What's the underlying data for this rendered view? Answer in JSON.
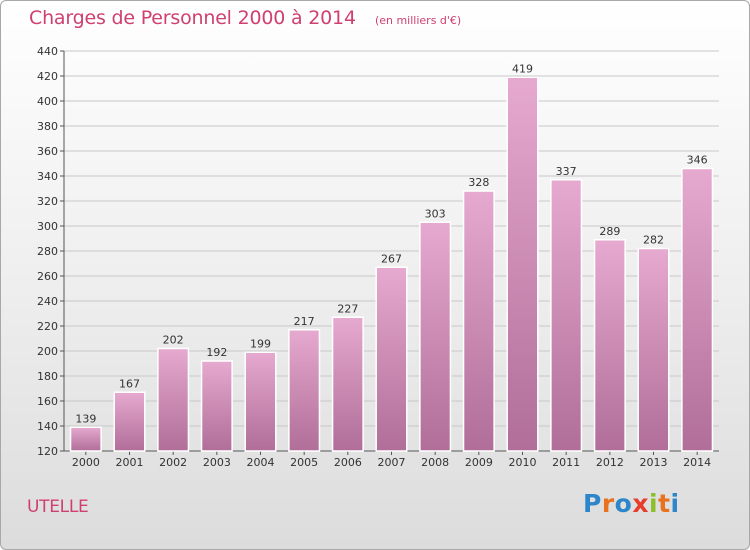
{
  "header": {
    "title": "Charges de Personnel 2000 à 2014",
    "subtitle": "(en milliers d'€)"
  },
  "footer": {
    "commune": "UTELLE",
    "logo": "Proxiti"
  },
  "colors": {
    "title": "#d0406f",
    "bar_top": "#e6a9cf",
    "bar_bottom": "#b06e98",
    "grid": "#c8c8c8",
    "logo_letters": [
      "#2c86c9",
      "#e8721f",
      "#2c86c9",
      "#e83c2c",
      "#8cbf2a",
      "#e8721f",
      "#2c86c9"
    ]
  },
  "chart_data": {
    "type": "bar",
    "categories": [
      "2000",
      "2001",
      "2002",
      "2003",
      "2004",
      "2005",
      "2006",
      "2007",
      "2008",
      "2009",
      "2010",
      "2011",
      "2012",
      "2013",
      "2014"
    ],
    "values": [
      139,
      167,
      202,
      192,
      199,
      217,
      227,
      267,
      303,
      328,
      419,
      337,
      289,
      282,
      346
    ],
    "title": "Charges de Personnel 2000 à 2014",
    "ylim": [
      120,
      440
    ],
    "yticks": [
      120,
      140,
      160,
      180,
      200,
      220,
      240,
      260,
      280,
      300,
      320,
      340,
      360,
      380,
      400,
      420,
      440
    ],
    "grid": true,
    "data_labels": true
  }
}
